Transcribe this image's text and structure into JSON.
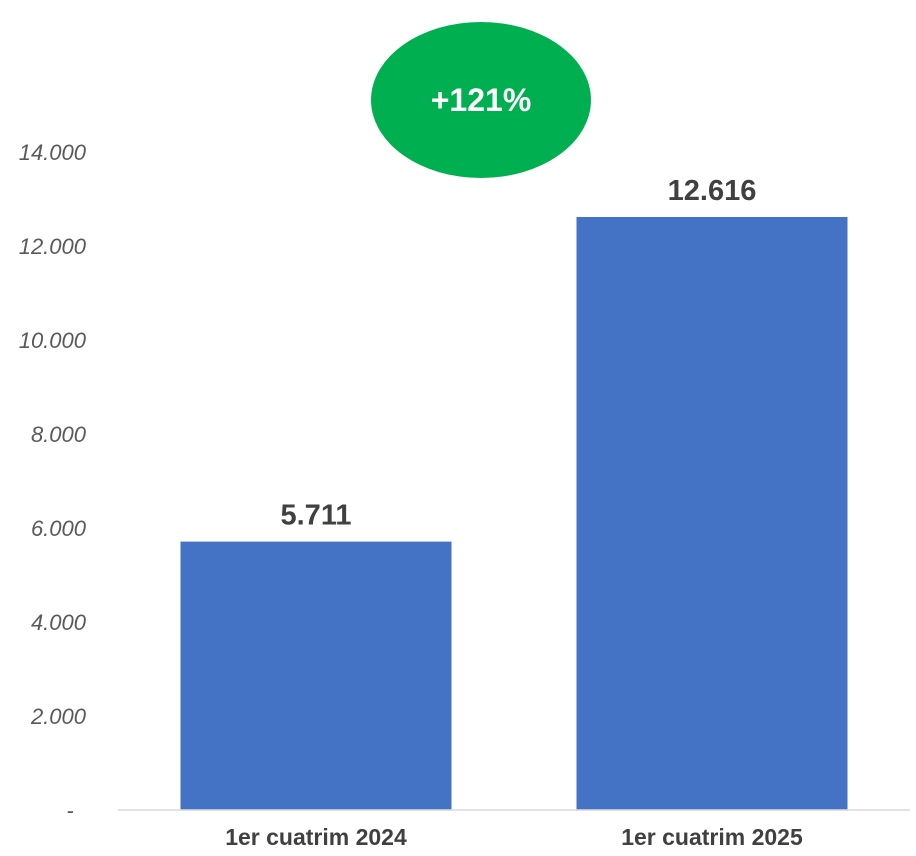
{
  "chart_data": {
    "type": "bar",
    "categories": [
      "1er cuatrim 2024",
      "1er cuatrim 2025"
    ],
    "values": [
      5711,
      12616
    ],
    "data_labels": [
      "5.711",
      "12.616"
    ],
    "ylim": [
      0,
      14000
    ],
    "y_ticks": [
      0,
      2000,
      4000,
      6000,
      8000,
      10000,
      12000,
      14000
    ],
    "y_tick_labels": [
      "-",
      "2.000",
      "4.000",
      "6.000",
      "8.000",
      "10.000",
      "12.000",
      "14.000"
    ],
    "grid": false,
    "legend": "none",
    "title": "",
    "xlabel": "",
    "ylabel": "",
    "annotation": "+121%"
  },
  "colors": {
    "bar": "#4472C4",
    "badge": "#00B050",
    "axis_line": "#D9D9D9"
  }
}
